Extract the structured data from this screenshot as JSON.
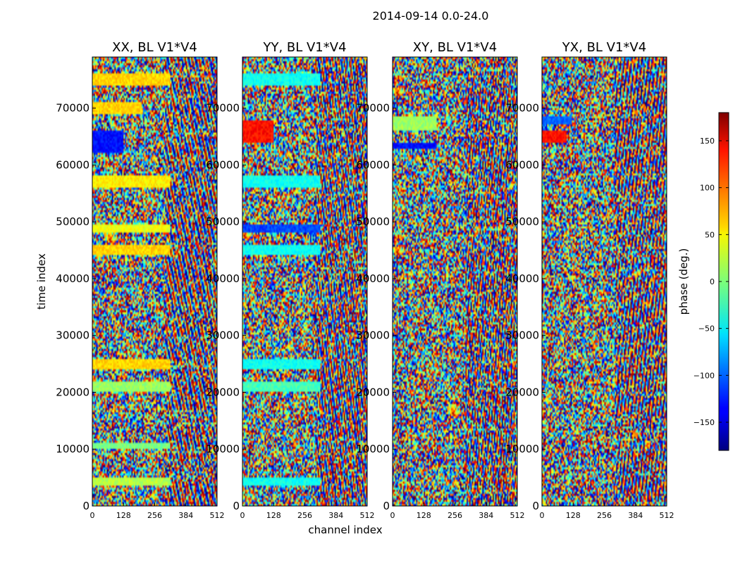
{
  "chart_data": {
    "type": "heatmap",
    "title": "2014-09-14 0.0-24.0",
    "xlabel": "channel index",
    "ylabel": "time index",
    "colorbar_label": "phase (deg.)",
    "colormap": "jet",
    "xlim": [
      0,
      512
    ],
    "ylim": [
      0,
      79000
    ],
    "xticks": [
      0,
      128,
      256,
      384,
      512
    ],
    "yticks": [
      0,
      10000,
      20000,
      30000,
      40000,
      50000,
      60000,
      70000
    ],
    "clim": [
      -180,
      180
    ],
    "colorbar_ticks": [
      -150,
      -100,
      -50,
      0,
      50,
      100,
      150
    ],
    "panels": [
      {
        "title": "XX, BL V1*V4",
        "flat_bands": [
          {
            "t0": 74000,
            "t1": 76000,
            "c1": 320,
            "phase": 60
          },
          {
            "t0": 69000,
            "t1": 71000,
            "c1": 200,
            "phase": 60
          },
          {
            "t0": 62000,
            "t1": 66000,
            "c1": 130,
            "phase": -130
          },
          {
            "t0": 56000,
            "t1": 58000,
            "c1": 320,
            "phase": 50
          },
          {
            "t0": 48000,
            "t1": 49500,
            "c1": 320,
            "phase": 40
          },
          {
            "t0": 44000,
            "t1": 46000,
            "c1": 320,
            "phase": 60
          },
          {
            "t0": 24000,
            "t1": 26000,
            "c1": 320,
            "phase": 60
          },
          {
            "t0": 20000,
            "t1": 22000,
            "c1": 320,
            "phase": 10
          },
          {
            "t0": 10000,
            "t1": 11000,
            "c1": 320,
            "phase": 0
          },
          {
            "t0": 3500,
            "t1": 5000,
            "c1": 320,
            "phase": 20
          }
        ]
      },
      {
        "title": "YY, BL V1*V4",
        "flat_bands": [
          {
            "t0": 74000,
            "t1": 76000,
            "c1": 320,
            "phase": -40
          },
          {
            "t0": 64000,
            "t1": 68000,
            "c1": 130,
            "phase": 130
          },
          {
            "t0": 56000,
            "t1": 58000,
            "c1": 320,
            "phase": -40
          },
          {
            "t0": 48000,
            "t1": 49500,
            "c1": 320,
            "phase": -110
          },
          {
            "t0": 44000,
            "t1": 46000,
            "c1": 320,
            "phase": -40
          },
          {
            "t0": 24000,
            "t1": 26000,
            "c1": 320,
            "phase": -40
          },
          {
            "t0": 20000,
            "t1": 22000,
            "c1": 320,
            "phase": -20
          },
          {
            "t0": 3500,
            "t1": 5000,
            "c1": 320,
            "phase": -40
          }
        ]
      },
      {
        "title": "XY, BL V1*V4",
        "flat_bands": [
          {
            "t0": 66000,
            "t1": 68500,
            "c1": 180,
            "phase": 10
          },
          {
            "t0": 63000,
            "t1": 64000,
            "c1": 180,
            "phase": -130
          }
        ]
      },
      {
        "title": "YX, BL V1*V4",
        "flat_bands": [
          {
            "t0": 67000,
            "t1": 68500,
            "c1": 120,
            "phase": -100
          },
          {
            "t0": 64000,
            "t1": 66000,
            "c1": 100,
            "phase": 130
          }
        ]
      }
    ]
  }
}
